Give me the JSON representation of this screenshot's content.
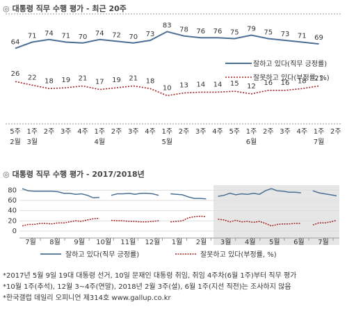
{
  "chart_data": [
    {
      "type": "line",
      "title": "대통령 직무 수행 평가 - 최근 20주",
      "categories": [
        [
          "5주",
          "2월"
        ],
        [
          "1주",
          "3월"
        ],
        [
          "2주",
          ""
        ],
        [
          "3주",
          ""
        ],
        [
          "4주",
          ""
        ],
        [
          "1주",
          "4월"
        ],
        [
          "2주",
          ""
        ],
        [
          "3주",
          ""
        ],
        [
          "4주",
          ""
        ],
        [
          "1주",
          "5월"
        ],
        [
          "2주",
          ""
        ],
        [
          "3주",
          ""
        ],
        [
          "4주",
          ""
        ],
        [
          "5주",
          ""
        ],
        [
          "1주",
          "6월"
        ],
        [
          "2주",
          ""
        ],
        [
          "3주",
          ""
        ],
        [
          "4주",
          ""
        ],
        [
          "1주",
          "7월"
        ],
        [
          "2주",
          ""
        ]
      ],
      "series": [
        {
          "name": "잘하고 있다(직무 긍정률)",
          "color": "#4a6f94",
          "dash": "",
          "values": [
            64,
            71,
            74,
            71,
            70,
            74,
            72,
            70,
            73,
            83,
            78,
            76,
            76,
            75,
            79,
            75,
            73,
            71,
            69,
            null
          ]
        },
        {
          "name": "잘못하고 있다(부정률, %)",
          "color": "#a32020",
          "dash": "2,2",
          "values": [
            26,
            22,
            18,
            19,
            21,
            17,
            19,
            21,
            18,
            10,
            13,
            14,
            14,
            15,
            12,
            16,
            16,
            18,
            21,
            null
          ]
        }
      ],
      "legend_position": "right"
    },
    {
      "type": "line",
      "title": "대통령 직무 수행 평가 - 2017/2018년",
      "yticks": [
        0,
        20,
        40,
        60,
        80
      ],
      "ylim": [
        0,
        90
      ],
      "months": [
        "7월",
        "8월",
        "9월",
        "10월",
        "11월",
        "12월",
        "1월",
        "2월",
        "3월",
        "4월",
        "5월",
        "6월",
        "7월"
      ],
      "series": [
        {
          "name": "잘하고 있다(직무 긍정률)",
          "color": "#4a6f94",
          "values": [
            83,
            79,
            78,
            78,
            78,
            78,
            77,
            74,
            74,
            72,
            73,
            70,
            65,
            66,
            null,
            70,
            73,
            73,
            74,
            72,
            74,
            74,
            73,
            70,
            null,
            73,
            72,
            71,
            67,
            64,
            64,
            63,
            null,
            68,
            70,
            74,
            71,
            73,
            72,
            74,
            72,
            79,
            83,
            79,
            78,
            76,
            76,
            75,
            null,
            79,
            75,
            73,
            71,
            69
          ]
        },
        {
          "name": "잘못하고 있다(부정률, %)",
          "color": "#a32020",
          "values": [
            10,
            13,
            13,
            15,
            15,
            14,
            16,
            16,
            18,
            20,
            19,
            22,
            24,
            25,
            null,
            21,
            20,
            20,
            19,
            19,
            18,
            18,
            19,
            20,
            null,
            18,
            19,
            20,
            26,
            28,
            29,
            28,
            null,
            23,
            22,
            18,
            21,
            18,
            19,
            17,
            19,
            15,
            10,
            13,
            14,
            14,
            15,
            15,
            null,
            12,
            16,
            16,
            18,
            21
          ]
        }
      ],
      "shaded_region_note": "recent 20 weeks highlighted"
    }
  ],
  "legend": {
    "pos": "잘하고 있다(직무 긍정률)",
    "neg": "잘못하고 있다(부정률, %)",
    "pos2": "잘하고 있다(직무 긍정률)",
    "neg2": "잘못하고 있다(부정률, %)"
  },
  "titles": {
    "t1": "대통령 직무 수행 평가 - 최근 20주",
    "t2": "대통령 직무 수행 평가 - 2017/2018년",
    "bullet": "◎"
  },
  "notes": [
    "*2017년 5월 9일 19대 대통령 선거, 10일 문재인 대통령 취임, 취임 4주차(6월 1주)부터 직무 평가",
    "*10월 1주(추석), 12월 3~4주(연말), 2018년 2월 3주(설), 6월 1주(지선 직전)는 조사하지 않음",
    "*한국갤럽 데일리 오피니언 제314호 www.gallup.co.kr"
  ]
}
